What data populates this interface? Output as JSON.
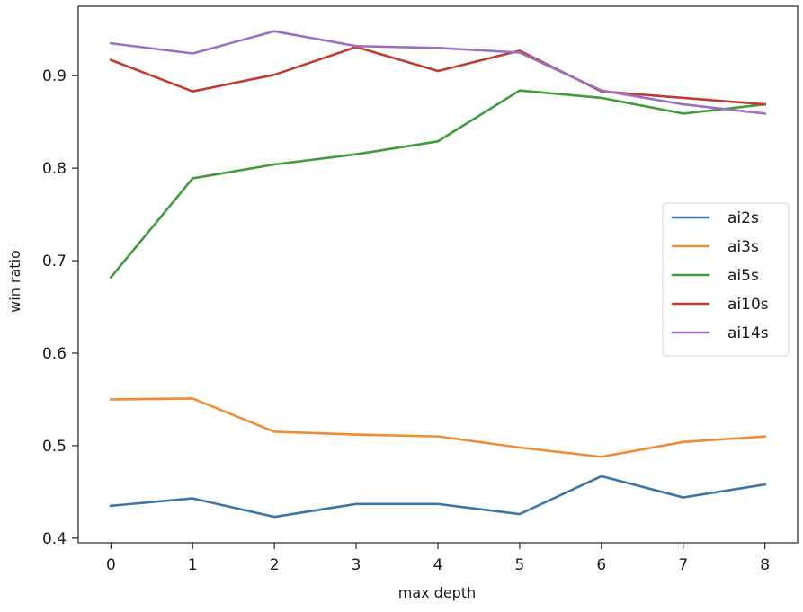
{
  "chart_data": {
    "type": "line",
    "title": "",
    "xlabel": "max depth",
    "ylabel": "win ratio",
    "x": [
      0,
      1,
      2,
      3,
      4,
      5,
      6,
      7,
      8
    ],
    "xlim": [
      -0.4,
      8.4
    ],
    "ylim": [
      0.395,
      0.975
    ],
    "xticks": [
      "0",
      "1",
      "2",
      "3",
      "4",
      "5",
      "6",
      "7",
      "8"
    ],
    "yticks": [
      "0.4",
      "0.5",
      "0.6",
      "0.7",
      "0.8",
      "0.9"
    ],
    "grid": false,
    "legend_position": "center-right",
    "series": [
      {
        "name": "ai2s",
        "color": "#3b76a8",
        "values": [
          0.435,
          0.443,
          0.423,
          0.437,
          0.437,
          0.426,
          0.467,
          0.444,
          0.458
        ]
      },
      {
        "name": "ai3s",
        "color": "#ef8c35",
        "values": [
          0.55,
          0.551,
          0.515,
          0.512,
          0.51,
          0.498,
          0.488,
          0.504,
          0.51
        ]
      },
      {
        "name": "ai5s",
        "color": "#3f9c3b",
        "values": [
          0.682,
          0.789,
          0.804,
          0.815,
          0.829,
          0.884,
          0.876,
          0.859,
          0.869
        ]
      },
      {
        "name": "ai10s",
        "color": "#c23a31",
        "values": [
          0.917,
          0.883,
          0.901,
          0.931,
          0.905,
          0.927,
          0.883,
          0.876,
          0.869
        ]
      },
      {
        "name": "ai14s",
        "color": "#9a6fc4",
        "values": [
          0.935,
          0.924,
          0.948,
          0.932,
          0.93,
          0.925,
          0.884,
          0.869,
          0.859
        ]
      }
    ]
  }
}
